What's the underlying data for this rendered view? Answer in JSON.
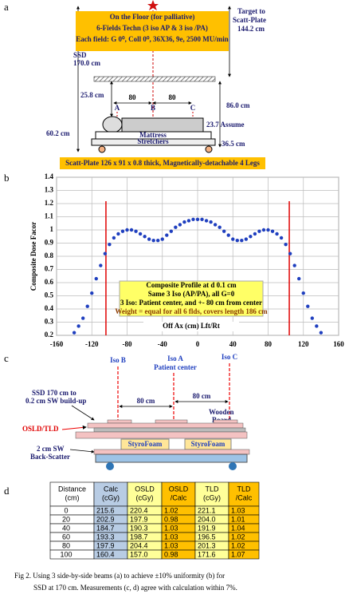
{
  "panel_a": {
    "label": "a",
    "title_lines": [
      "On the Floor (for palliative)",
      "6-Fields Techn (3 iso AP & 3 iso /PA)",
      "Each field: G 0⁰, Coll 0⁰, 36X36, 9e, 2500 MU/min"
    ],
    "ssd": [
      "SSD",
      "170.0 cm"
    ],
    "target": [
      "Target to",
      "Scatt-Plate",
      "144.2 cm"
    ],
    "d1": "25.8 cm",
    "spacing": [
      "80",
      "80"
    ],
    "isos": [
      "A",
      "B",
      "C"
    ],
    "d2": "86.0 cm",
    "assume": "23.7 Assume",
    "d3": "60.2 cm",
    "mattress": [
      "Mattress",
      "Stretchers"
    ],
    "d4": "36.5 cm",
    "plate": "Scatt-Plate 126 x 91 x 0.8 thick, Magnetically-detachable 4 Legs"
  },
  "chart_label": "b",
  "chart_data": {
    "type": "scatter",
    "ylabel": "Composite Dose Facor",
    "xlabel": "Off Ax (cm) Lft/Rt",
    "annotation": [
      "Composite Profile at d 0.1 cm",
      "Same 3 Iso (AP/PA), all G=0",
      "3 Iso: Patient center, and +- 80 cm from center",
      "Weight = equal for all 6 flds, covers length 186 cm"
    ],
    "xlim": [
      -160,
      160
    ],
    "xticks": [
      -160,
      -120,
      -80,
      -40,
      0,
      40,
      80,
      120,
      160
    ],
    "ylim": [
      0.2,
      1.4
    ],
    "yticks": [
      0.2,
      0.3,
      0.4,
      0.5,
      0.6,
      0.7,
      0.8,
      0.9,
      1,
      1.1,
      1.2,
      1.3,
      1.4
    ],
    "grid": true,
    "vlines": [
      -104,
      104
    ],
    "vline_color": "#e00000",
    "series": [
      {
        "color": "#1f3fbf",
        "x": [
          -140,
          -135,
          -130,
          -125,
          -120,
          -115,
          -110,
          -105,
          -100,
          -95,
          -90,
          -85,
          -80,
          -75,
          -70,
          -65,
          -60,
          -55,
          -50,
          -45,
          -40,
          -35,
          -30,
          -25,
          -20,
          -15,
          -10,
          -5,
          0,
          5,
          10,
          15,
          20,
          25,
          30,
          35,
          40,
          45,
          50,
          55,
          60,
          65,
          70,
          75,
          80,
          85,
          90,
          95,
          100,
          105,
          110,
          115,
          120,
          125,
          130,
          135,
          140
        ],
        "values": [
          0.22,
          0.27,
          0.33,
          0.42,
          0.52,
          0.63,
          0.73,
          0.82,
          0.89,
          0.94,
          0.97,
          0.99,
          1.0,
          1.0,
          0.99,
          0.97,
          0.95,
          0.93,
          0.92,
          0.92,
          0.93,
          0.96,
          0.99,
          1.02,
          1.04,
          1.06,
          1.07,
          1.08,
          1.08,
          1.08,
          1.07,
          1.06,
          1.04,
          1.02,
          0.99,
          0.96,
          0.93,
          0.92,
          0.92,
          0.93,
          0.95,
          0.97,
          0.99,
          1.0,
          1.0,
          0.99,
          0.97,
          0.94,
          0.89,
          0.82,
          0.73,
          0.63,
          0.52,
          0.42,
          0.33,
          0.27,
          0.22
        ]
      }
    ]
  },
  "panel_c": {
    "label": "c",
    "isos": [
      "Iso B",
      "Iso A",
      "Iso C"
    ],
    "patient": "Patient center",
    "ssd": [
      "SSD 170 cm to",
      "0.2 cm SW build-up"
    ],
    "spacing": [
      "80 cm",
      "80 cm"
    ],
    "board": [
      "Wooden",
      "Board"
    ],
    "detector": "OSLD/TLD",
    "foam": [
      "StyroFoam",
      "StyroFoam"
    ],
    "back": [
      "2 cm SW",
      "Back-Scatter"
    ]
  },
  "table": {
    "label": "d",
    "header": [
      [
        "Distance",
        "(cm)"
      ],
      [
        "Calc",
        "(cGy)"
      ],
      [
        "OSLD",
        "(cGy)"
      ],
      [
        "OSLD",
        "/Calc"
      ],
      [
        "TLD",
        "(cGy)"
      ],
      [
        "TLD",
        "/Calc"
      ]
    ],
    "rows": [
      [
        "0",
        "215.6",
        "220.4",
        "1.02",
        "221.1",
        "1.03"
      ],
      [
        "20",
        "202.9",
        "197.9",
        "0.98",
        "204.0",
        "1.01"
      ],
      [
        "40",
        "184.7",
        "190.3",
        "1.03",
        "191.9",
        "1.04"
      ],
      [
        "60",
        "193.3",
        "198.7",
        "1.03",
        "196.5",
        "1.02"
      ],
      [
        "80",
        "197.9",
        "204.4",
        "1.03",
        "201.3",
        "1.02"
      ],
      [
        "100",
        "160.4",
        "157.0",
        "0.98",
        "171.6",
        "1.07"
      ]
    ],
    "column_colors": [
      "#ffffff",
      "#b8cce4",
      "#ffff99",
      "#ffc000",
      "#ffff99",
      "#ffc000"
    ]
  },
  "caption": [
    "Fig 2. Using 3 side-by-side beams (a) to achieve ±10% uniformity (b) for",
    "SSD at 170 cm. Measurements (c, d) agree with calculation within 7%."
  ]
}
